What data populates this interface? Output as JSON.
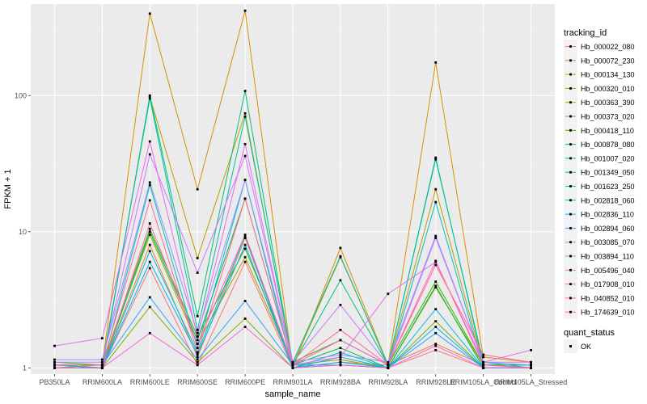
{
  "chart_data": {
    "type": "line",
    "xlabel": "sample_name",
    "ylabel": "FPKM + 1",
    "y_scale": "log10",
    "ylim": [
      0.9,
      470
    ],
    "y_ticks": [
      1,
      10,
      100
    ],
    "categories": [
      "PB350LA",
      "RRIM600LA",
      "RRIM600LE",
      "RRIM600SE",
      "RRIM600PE",
      "RRIM901LA",
      "RRIM928BA",
      "RRIM928LA",
      "RRIM928LE",
      "RRIM105LA_Control",
      "RRIM105LA_Stressed"
    ],
    "grid": true,
    "background": "#ebebeb",
    "point_color": "#000000",
    "legend": {
      "title": "tracking_id",
      "position": "right"
    },
    "shape_legend": {
      "title": "quant_status",
      "items": [
        {
          "label": "OK",
          "marker": "square"
        }
      ]
    },
    "series": [
      {
        "name": "Hb_000022_080",
        "color": "#F8766D",
        "values": [
          1.0,
          1.0,
          5.4,
          1.05,
          6.0,
          1.0,
          1.05,
          1.0,
          1.35,
          1.0,
          1.0
        ]
      },
      {
        "name": "Hb_000072_230",
        "color": "#EA8331",
        "values": [
          1.05,
          1.0,
          8.0,
          1.2,
          9.0,
          1.0,
          1.1,
          1.05,
          1.5,
          1.05,
          1.0
        ]
      },
      {
        "name": "Hb_000134_130",
        "color": "#D89000",
        "values": [
          1.0,
          1.05,
          400,
          20.5,
          420,
          1.0,
          7.6,
          1.05,
          175,
          1.2,
          1.1
        ]
      },
      {
        "name": "Hb_000320_010",
        "color": "#C09B00",
        "values": [
          1.0,
          1.0,
          98,
          6.4,
          74,
          1.05,
          6.5,
          1.05,
          20.5,
          1.05,
          1.05
        ]
      },
      {
        "name": "Hb_000363_390",
        "color": "#A3A500",
        "values": [
          1.05,
          1.05,
          9.5,
          1.5,
          6.5,
          1.05,
          1.15,
          1.0,
          3.9,
          1.05,
          1.0
        ]
      },
      {
        "name": "Hb_000373_020",
        "color": "#7CAE00",
        "values": [
          1.0,
          1.0,
          2.8,
          1.1,
          2.3,
          1.0,
          1.05,
          1.0,
          2.2,
          1.0,
          1.0
        ]
      },
      {
        "name": "Hb_000418_110",
        "color": "#39B600",
        "values": [
          1.1,
          1.05,
          10.5,
          1.7,
          7.5,
          1.1,
          1.6,
          1.05,
          4.3,
          1.05,
          1.05
        ]
      },
      {
        "name": "Hb_000878_080",
        "color": "#00BB4E",
        "values": [
          1.05,
          1.0,
          10.0,
          1.6,
          17.5,
          1.05,
          1.4,
          1.0,
          4.0,
          1.0,
          1.0
        ]
      },
      {
        "name": "Hb_001007_020",
        "color": "#00BF7D",
        "values": [
          1.0,
          1.0,
          100,
          2.4,
          108,
          1.05,
          4.4,
          1.05,
          35,
          1.05,
          1.05
        ]
      },
      {
        "name": "Hb_001349_050",
        "color": "#00C1A3",
        "values": [
          1.05,
          1.05,
          95,
          1.9,
          70,
          1.1,
          6.6,
          1.05,
          34,
          1.1,
          1.0
        ]
      },
      {
        "name": "Hb_001623_250",
        "color": "#00BFC4",
        "values": [
          1.0,
          1.0,
          22,
          1.4,
          24,
          1.0,
          1.3,
          1.0,
          16.5,
          1.0,
          1.0
        ]
      },
      {
        "name": "Hb_002818_060",
        "color": "#00BAE0",
        "values": [
          1.05,
          1.0,
          7.2,
          1.3,
          9.3,
          1.0,
          1.2,
          1.0,
          2.7,
          1.0,
          1.0
        ]
      },
      {
        "name": "Hb_002836_110",
        "color": "#00B0F6",
        "values": [
          1.0,
          1.0,
          6.0,
          1.25,
          8.0,
          1.0,
          1.1,
          1.0,
          2.0,
          1.0,
          1.0
        ]
      },
      {
        "name": "Hb_002894_060",
        "color": "#35A2FF",
        "values": [
          1.05,
          1.05,
          3.3,
          1.15,
          3.1,
          1.05,
          1.05,
          1.0,
          1.8,
          1.0,
          1.0
        ]
      },
      {
        "name": "Hb_003085_070",
        "color": "#9590FF",
        "values": [
          1.15,
          1.15,
          23,
          1.8,
          24,
          1.1,
          1.25,
          1.1,
          9.3,
          1.1,
          1.05
        ]
      },
      {
        "name": "Hb_003894_110",
        "color": "#C77CFF",
        "values": [
          1.1,
          1.1,
          37,
          5.0,
          36,
          1.1,
          2.9,
          1.05,
          9.0,
          1.1,
          1.1
        ]
      },
      {
        "name": "Hb_005496_040",
        "color": "#E76BF3",
        "values": [
          1.45,
          1.65,
          46,
          1.7,
          44,
          1.05,
          1.2,
          3.5,
          6.0,
          1.1,
          1.35
        ]
      },
      {
        "name": "Hb_017908_010",
        "color": "#FA62DB",
        "values": [
          1.0,
          1.0,
          1.8,
          1.05,
          2.0,
          1.0,
          1.05,
          1.0,
          1.45,
          1.0,
          1.0
        ]
      },
      {
        "name": "Hb_040852_010",
        "color": "#FF62BC",
        "values": [
          1.0,
          1.0,
          11.5,
          1.5,
          9.5,
          1.05,
          1.6,
          1.05,
          6.1,
          1.05,
          1.0
        ]
      },
      {
        "name": "Hb_174639_010",
        "color": "#FF6C91",
        "values": [
          1.05,
          1.05,
          17,
          1.3,
          17.5,
          1.05,
          1.9,
          1.05,
          5.7,
          1.25,
          1.1
        ]
      }
    ]
  }
}
